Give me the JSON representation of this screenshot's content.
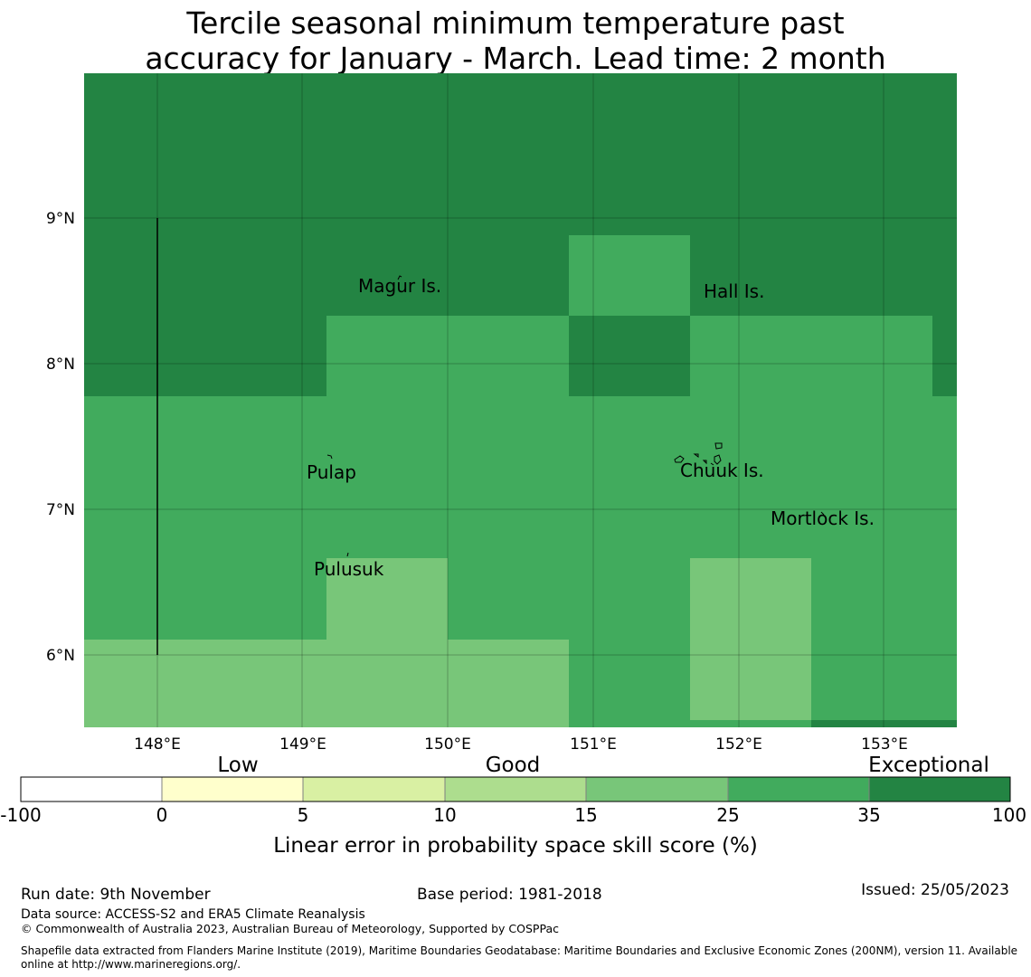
{
  "title": {
    "line1": "Tercile seasonal minimum temperature past",
    "line2": "accuracy for January - March. Lead time: 2 month"
  },
  "map": {
    "lat_ticks": [
      "9°N",
      "8°N",
      "7°N",
      "6°N"
    ],
    "lon_ticks": [
      "148°E",
      "149°E",
      "150°E",
      "151°E",
      "152°E",
      "153°E"
    ],
    "place_labels": [
      "Magur Is.",
      "Hall Is.",
      "Pulap",
      "Chuuk Is.",
      "Mortlock Is.",
      "Pulusuk"
    ],
    "colors": {
      "exceptional": "#238443",
      "band_25_35": "#41ab5d",
      "band_15_25": "#78c679",
      "band_10_15": "#addd8e",
      "band_5_10": "#d9f0a3",
      "band_0_5": "#ffffcc",
      "band_neg": "#ffffff"
    }
  },
  "colorbar": {
    "category_labels": [
      "Low",
      "Good",
      "Exceptional"
    ],
    "tick_labels": [
      "-100",
      "0",
      "5",
      "10",
      "15",
      "25",
      "35",
      "100"
    ],
    "colors": [
      "#ffffff",
      "#ffffcc",
      "#d9f0a3",
      "#addd8e",
      "#78c679",
      "#41ab5d",
      "#238443"
    ],
    "axis_label": "Linear error in probability space skill score (%)"
  },
  "footer": {
    "run_date": "Run date: 9th November",
    "base_period": "Base period: 1981-2018",
    "issued": "Issued: 25/05/2023",
    "data_source": "Data source: ACCESS-S2 and ERA5 Climate Reanalysis",
    "copyright": "© Commonwealth of Australia 2023, Australian Bureau of Meteorology, Supported by COSPPac",
    "shapefile_line1": "Shapefile data extracted from Flanders Marine Institute (2019), Maritime Boundaries Geodatabase: Maritime Boundaries and Exclusive Economic Zones (200NM), version 11. Available",
    "shapefile_line2": "online at http://www.marineregions.org/."
  }
}
